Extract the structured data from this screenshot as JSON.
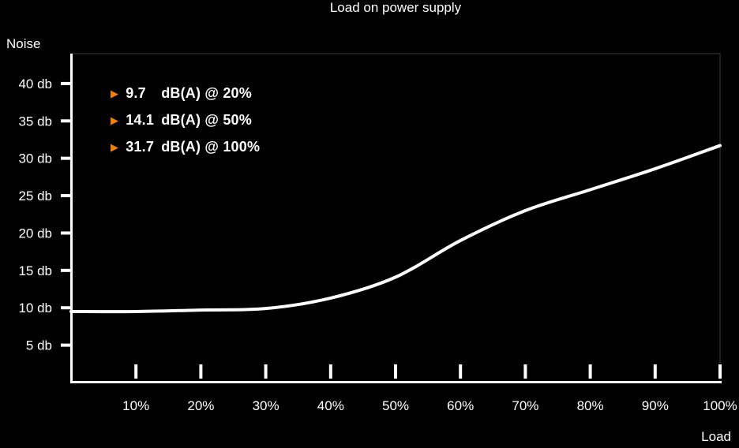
{
  "title": "Load on power supply",
  "colors": {
    "background": "#000000",
    "text": "#ffffff",
    "curve": "#ffffff",
    "accent_orange": "#ef8109",
    "plot_border": "#3d3d3d",
    "axis": "#ffffff"
  },
  "marker_icon": "▶",
  "chart_data": {
    "type": "line",
    "title": "Load on power supply",
    "xlabel": "Load",
    "ylabel": "Noise",
    "x_unit": "%",
    "y_unit": "db",
    "x": [
      0,
      10,
      20,
      30,
      40,
      50,
      60,
      70,
      80,
      90,
      100
    ],
    "values": [
      9.5,
      9.5,
      9.7,
      9.9,
      11.3,
      14.1,
      19.0,
      23.0,
      25.8,
      28.6,
      31.7
    ],
    "xlim": [
      0,
      100
    ],
    "ylim": [
      0,
      44
    ],
    "x_ticks": [
      10,
      20,
      30,
      40,
      50,
      60,
      70,
      80,
      90,
      100
    ],
    "x_tick_labels": [
      "10%",
      "20%",
      "30%",
      "40%",
      "50%",
      "60%",
      "70%",
      "80%",
      "90%",
      "100%"
    ],
    "y_ticks": [
      5,
      10,
      15,
      20,
      25,
      30,
      35,
      40
    ],
    "y_tick_labels": [
      "5 db",
      "10 db",
      "15 db",
      "20 db",
      "25 db",
      "30 db",
      "35 db",
      "40 db"
    ],
    "grid": false,
    "legend": null,
    "annotations": [
      {
        "value": "9.7",
        "text": "dB(A) @ 20%"
      },
      {
        "value": "14.1",
        "text": "dB(A) @ 50%"
      },
      {
        "value": "31.7",
        "text": "dB(A) @ 100%"
      }
    ]
  }
}
